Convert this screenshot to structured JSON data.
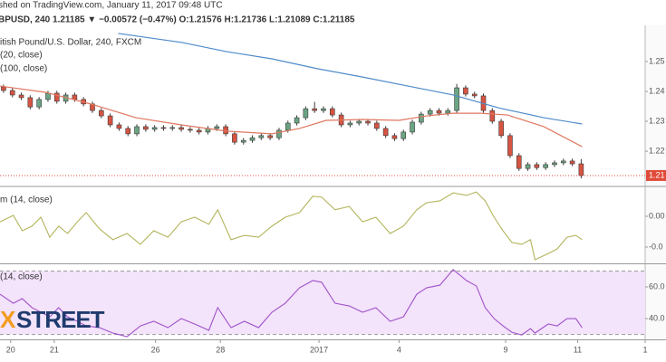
{
  "header": {
    "published": "shed on TradingView.com, January 11, 2017 09:48 UTC",
    "quote": "BPUSD, 240  1.21185 ▼ −0.00572 (−0.47%) O:1.21576 H:1.21736 L:1.21089 C:1.21185"
  },
  "watermark": {
    "mark": "X",
    "word": "STREET"
  },
  "chart_data": [
    {
      "type": "candlestick",
      "title": "itish Pound/U.S. Dollar, 240, FXCM",
      "xlim": [
        -0.4,
        72.2
      ],
      "ylim": [
        1.2085,
        1.2615
      ],
      "yticks": [
        1.25,
        1.24,
        1.23,
        1.22
      ],
      "up_color": "#6ba583",
      "down_color": "#d75442",
      "open": [
        1.2415,
        1.2403,
        1.2388,
        1.2379,
        1.2348,
        1.2373,
        1.2394,
        1.2367,
        1.2388,
        1.2373,
        1.2358,
        1.2336,
        1.2318,
        1.2288,
        1.2276,
        1.2258,
        1.2282,
        1.2273,
        1.2279,
        1.2276,
        1.2279,
        1.2273,
        1.227,
        1.2264,
        1.2276,
        1.2282,
        1.2258,
        1.223,
        1.2236,
        1.2245,
        1.2252,
        1.2245,
        1.227,
        1.2294,
        1.2312,
        1.2342,
        1.2336,
        1.2342,
        1.2321,
        1.2288,
        1.2294,
        1.23,
        1.2294,
        1.2276,
        1.2252,
        1.2242,
        1.2264,
        1.2297,
        1.2324,
        1.2336,
        1.2327,
        1.2336,
        1.2412,
        1.2391,
        1.2385,
        1.2336,
        1.23,
        1.2252,
        1.2185,
        1.2142,
        1.2155,
        1.2145,
        1.2155,
        1.2161,
        1.2167,
        1.21576
      ],
      "high": [
        1.2423,
        1.2411,
        1.2396,
        1.2387,
        1.2381,
        1.2402,
        1.2402,
        1.2396,
        1.2396,
        1.2381,
        1.2366,
        1.2344,
        1.2326,
        1.2296,
        1.2284,
        1.229,
        1.229,
        1.2287,
        1.2287,
        1.2287,
        1.2287,
        1.2281,
        1.2278,
        1.2284,
        1.229,
        1.229,
        1.2266,
        1.2244,
        1.2253,
        1.226,
        1.226,
        1.2278,
        1.2302,
        1.232,
        1.235,
        1.2365,
        1.235,
        1.235,
        1.2329,
        1.2302,
        1.2308,
        1.2308,
        1.2302,
        1.2284,
        1.226,
        1.2272,
        1.2305,
        1.2332,
        1.2344,
        1.2344,
        1.2344,
        1.2425,
        1.242,
        1.2399,
        1.2393,
        1.2344,
        1.2308,
        1.226,
        1.2193,
        1.2163,
        1.2163,
        1.2163,
        1.2169,
        1.2175,
        1.2175,
        1.21736
      ],
      "low": [
        1.2395,
        1.238,
        1.2371,
        1.234,
        1.234,
        1.2365,
        1.2359,
        1.2359,
        1.2365,
        1.235,
        1.2328,
        1.231,
        1.228,
        1.2268,
        1.225,
        1.225,
        1.2265,
        1.2265,
        1.2268,
        1.2268,
        1.2265,
        1.2262,
        1.2256,
        1.2256,
        1.2268,
        1.225,
        1.2222,
        1.2222,
        1.2228,
        1.2237,
        1.2237,
        1.2237,
        1.2262,
        1.2286,
        1.2304,
        1.2328,
        1.2328,
        1.2313,
        1.228,
        1.228,
        1.2286,
        1.2286,
        1.2268,
        1.2244,
        1.2234,
        1.2234,
        1.2256,
        1.2289,
        1.2316,
        1.2319,
        1.2319,
        1.2328,
        1.2383,
        1.2377,
        1.2328,
        1.2292,
        1.2244,
        1.2177,
        1.2134,
        1.2134,
        1.2137,
        1.2137,
        1.2147,
        1.2153,
        1.215,
        1.21089
      ],
      "close": [
        1.2403,
        1.2388,
        1.2379,
        1.2348,
        1.2373,
        1.2394,
        1.2367,
        1.2388,
        1.2373,
        1.2358,
        1.2336,
        1.2318,
        1.2288,
        1.2276,
        1.2258,
        1.2282,
        1.2273,
        1.2279,
        1.2276,
        1.2279,
        1.2273,
        1.227,
        1.2264,
        1.2276,
        1.2282,
        1.2258,
        1.223,
        1.2236,
        1.2245,
        1.2252,
        1.2245,
        1.227,
        1.2294,
        1.2312,
        1.2342,
        1.2336,
        1.2342,
        1.2321,
        1.2288,
        1.2294,
        1.23,
        1.2294,
        1.2276,
        1.2252,
        1.2242,
        1.2264,
        1.2297,
        1.2324,
        1.2336,
        1.2327,
        1.2336,
        1.2412,
        1.2391,
        1.2385,
        1.2336,
        1.23,
        1.2252,
        1.2185,
        1.2142,
        1.2155,
        1.2145,
        1.2155,
        1.2161,
        1.2167,
        1.21576,
        1.21185
      ],
      "series": [
        {
          "name": "(20, close)",
          "color": "#e0775f",
          "x": [
            -0.4,
            4.7,
            9.8,
            14.9,
            20,
            25.1,
            30.2,
            33.3,
            36.3,
            40.4,
            44.5,
            47.6,
            50.6,
            53.7,
            56.7,
            60.8,
            65.1
          ],
          "values": [
            1.2418,
            1.2397,
            1.2358,
            1.2312,
            1.2288,
            1.2267,
            1.2258,
            1.2276,
            1.2303,
            1.2306,
            1.2303,
            1.2318,
            1.2327,
            1.2327,
            1.2321,
            1.2282,
            1.2215
          ]
        },
        {
          "name": "(100, close)",
          "color": "#4f8bc9",
          "x": [
            12.9,
            20,
            25.1,
            30.2,
            35.3,
            40.4,
            45.5,
            50.6,
            55.7,
            60.8,
            65.1
          ],
          "values": [
            1.2594,
            1.2564,
            1.2533,
            1.2509,
            1.2476,
            1.2448,
            1.2418,
            1.2388,
            1.2345,
            1.2312,
            1.2291
          ]
        }
      ],
      "last_value": 1.21185,
      "last_label": "1.21",
      "last_color": "#e04b3a"
    },
    {
      "type": "line",
      "title": "m (14, close)",
      "xlim": [
        -0.4,
        72.2
      ],
      "ylim": [
        -0.015,
        0.0094
      ],
      "yticks": [
        {
          "value": 0,
          "label": "0.00"
        },
        {
          "value": -0.01,
          "label": "-0.0"
        }
      ],
      "color": "#b3b45c",
      "x": [
        -0.4,
        1.1,
        2.1,
        3.2,
        4.2,
        5.2,
        6.2,
        7.2,
        8.3,
        9.3,
        10.8,
        12.3,
        13.9,
        15.4,
        16.9,
        18.5,
        20,
        21.5,
        23.1,
        24.1,
        25.6,
        27.1,
        28.7,
        30.2,
        31.7,
        33.3,
        34.8,
        35.8,
        37.3,
        38.9,
        40.4,
        41.9,
        43.5,
        45,
        46.5,
        47.6,
        49.1,
        50.6,
        52.1,
        53.2,
        54.2,
        55.2,
        56.2,
        57.2,
        58.3,
        59.3,
        59.8,
        61.3,
        62.3,
        63.4,
        64.4,
        65.1
      ],
      "values": [
        -0.0018,
        0.0003,
        -0.0047,
        -0.0032,
        -0.0003,
        -0.0068,
        -0.0032,
        -0.0056,
        -0.0018,
        0.0012,
        -0.0041,
        -0.0076,
        -0.0056,
        -0.0091,
        -0.0047,
        -0.0068,
        -0.0018,
        -0.0003,
        -0.0026,
        0.0021,
        -0.0076,
        -0.0062,
        -0.0068,
        -0.0032,
        -0.0003,
        0.0012,
        0.0065,
        0.0062,
        0.0021,
        0.0032,
        -0.0018,
        -0.0003,
        -0.0056,
        -0.0032,
        0.0021,
        0.0044,
        0.005,
        0.0076,
        0.0068,
        0.0079,
        0.005,
        -0.0003,
        -0.0047,
        -0.0085,
        -0.0091,
        -0.0076,
        -0.0141,
        -0.0121,
        -0.0106,
        -0.0068,
        -0.0062,
        -0.0076
      ]
    },
    {
      "type": "line",
      "title": "(14, close)",
      "xlim": [
        -0.4,
        72.2
      ],
      "ylim": [
        26.9,
        73.7
      ],
      "yticks": [
        {
          "value": 60,
          "label": "60.0"
        },
        {
          "value": 40,
          "label": "40.0"
        }
      ],
      "band": [
        30,
        70
      ],
      "band_color": "#f3e3fb",
      "color": "#a052c8",
      "x": [
        -0.4,
        1.1,
        2.1,
        3.2,
        4.2,
        5.2,
        6.2,
        7.2,
        8.3,
        9.3,
        10.8,
        12.3,
        13.9,
        15.4,
        16.9,
        18.5,
        20,
        21.5,
        23.1,
        24.1,
        25.6,
        27.1,
        28.7,
        30.2,
        31.7,
        33.3,
        34.8,
        35.8,
        37.3,
        38.9,
        40.4,
        41.9,
        43.5,
        45,
        46.5,
        47.6,
        49.1,
        50.6,
        52.1,
        53.2,
        54.2,
        55.2,
        56.2,
        57.2,
        58.3,
        59.3,
        59.8,
        61.3,
        62.3,
        63.4,
        64.4,
        65.1
      ],
      "values": [
        55.4,
        49.7,
        52.6,
        46.9,
        44.0,
        41.1,
        46.9,
        41.1,
        38.3,
        35.4,
        34.3,
        30.9,
        28.6,
        35.4,
        38.3,
        34.3,
        40.0,
        36.6,
        32.6,
        46.9,
        34.3,
        38.3,
        34.3,
        44.0,
        49.7,
        59.4,
        64.0,
        62.9,
        49.7,
        48.0,
        44.0,
        46.9,
        38.3,
        41.1,
        55.4,
        59.4,
        61.1,
        70.9,
        64.0,
        60.6,
        46.9,
        40.0,
        35.4,
        31.4,
        29.7,
        33.7,
        30.9,
        36.6,
        35.4,
        40.0,
        40.0,
        34.3
      ],
      "xticks": [
        {
          "value": 0.8,
          "label": "20"
        },
        {
          "value": 5.7,
          "label": "21"
        },
        {
          "value": 17.1,
          "label": "26"
        },
        {
          "value": 24.4,
          "label": "28"
        },
        {
          "value": 35.5,
          "label": "2017"
        },
        {
          "value": 44.5,
          "label": "4"
        },
        {
          "value": 56.5,
          "label": "9"
        },
        {
          "value": 64.6,
          "label": "11"
        },
        {
          "value": 72.2,
          "label": "1"
        }
      ]
    }
  ]
}
